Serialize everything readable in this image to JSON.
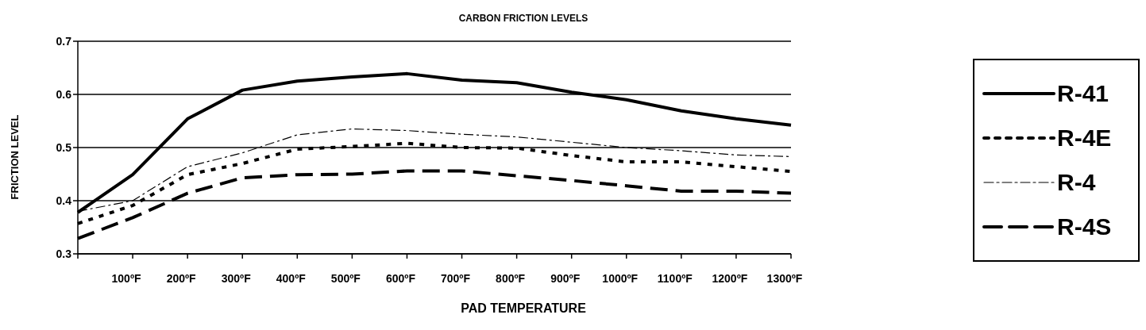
{
  "chart_data": {
    "type": "line",
    "title": "CARBON FRICTION LEVELS",
    "xlabel": "PAD TEMPERATURE",
    "ylabel": "FRICTION LEVEL",
    "categories": [
      null,
      "100ºF",
      "200ºF",
      "300ºF",
      "400ºF",
      "500ºF",
      "600ºF",
      "700ºF",
      "800ºF",
      "900ºF",
      "1000ºF",
      "1100ºF",
      "1200ºF",
      "1300ºF"
    ],
    "ylim": [
      0.3,
      0.7
    ],
    "yticks": [
      0.3,
      0.4,
      0.5,
      0.6,
      0.7
    ],
    "grid": "y",
    "legend": "right",
    "marker": "none",
    "series": [
      {
        "name": "R-41",
        "color": "#000000",
        "line_style": "solid",
        "values": [
          0.378,
          0.449,
          0.554,
          0.608,
          0.625,
          0.633,
          0.639,
          0.627,
          0.622,
          0.604,
          0.59,
          0.569,
          0.554,
          0.542
        ]
      },
      {
        "name": "R-4E",
        "color": "#000000",
        "line_style": "dotted",
        "values": [
          0.357,
          0.391,
          0.449,
          0.47,
          0.497,
          0.502,
          0.508,
          0.5,
          0.499,
          0.485,
          0.473,
          0.473,
          0.464,
          0.455
        ]
      },
      {
        "name": "R-4",
        "color": "#000000",
        "line_style": "dashdot",
        "values": [
          0.38,
          0.4,
          0.464,
          0.49,
          0.524,
          0.535,
          0.532,
          0.525,
          0.52,
          0.51,
          0.5,
          0.494,
          0.486,
          0.483
        ]
      },
      {
        "name": "R-4S",
        "color": "#000000",
        "line_style": "dashed",
        "values": [
          0.329,
          0.368,
          0.414,
          0.443,
          0.449,
          0.45,
          0.456,
          0.456,
          0.447,
          0.438,
          0.428,
          0.418,
          0.418,
          0.414
        ]
      }
    ]
  }
}
